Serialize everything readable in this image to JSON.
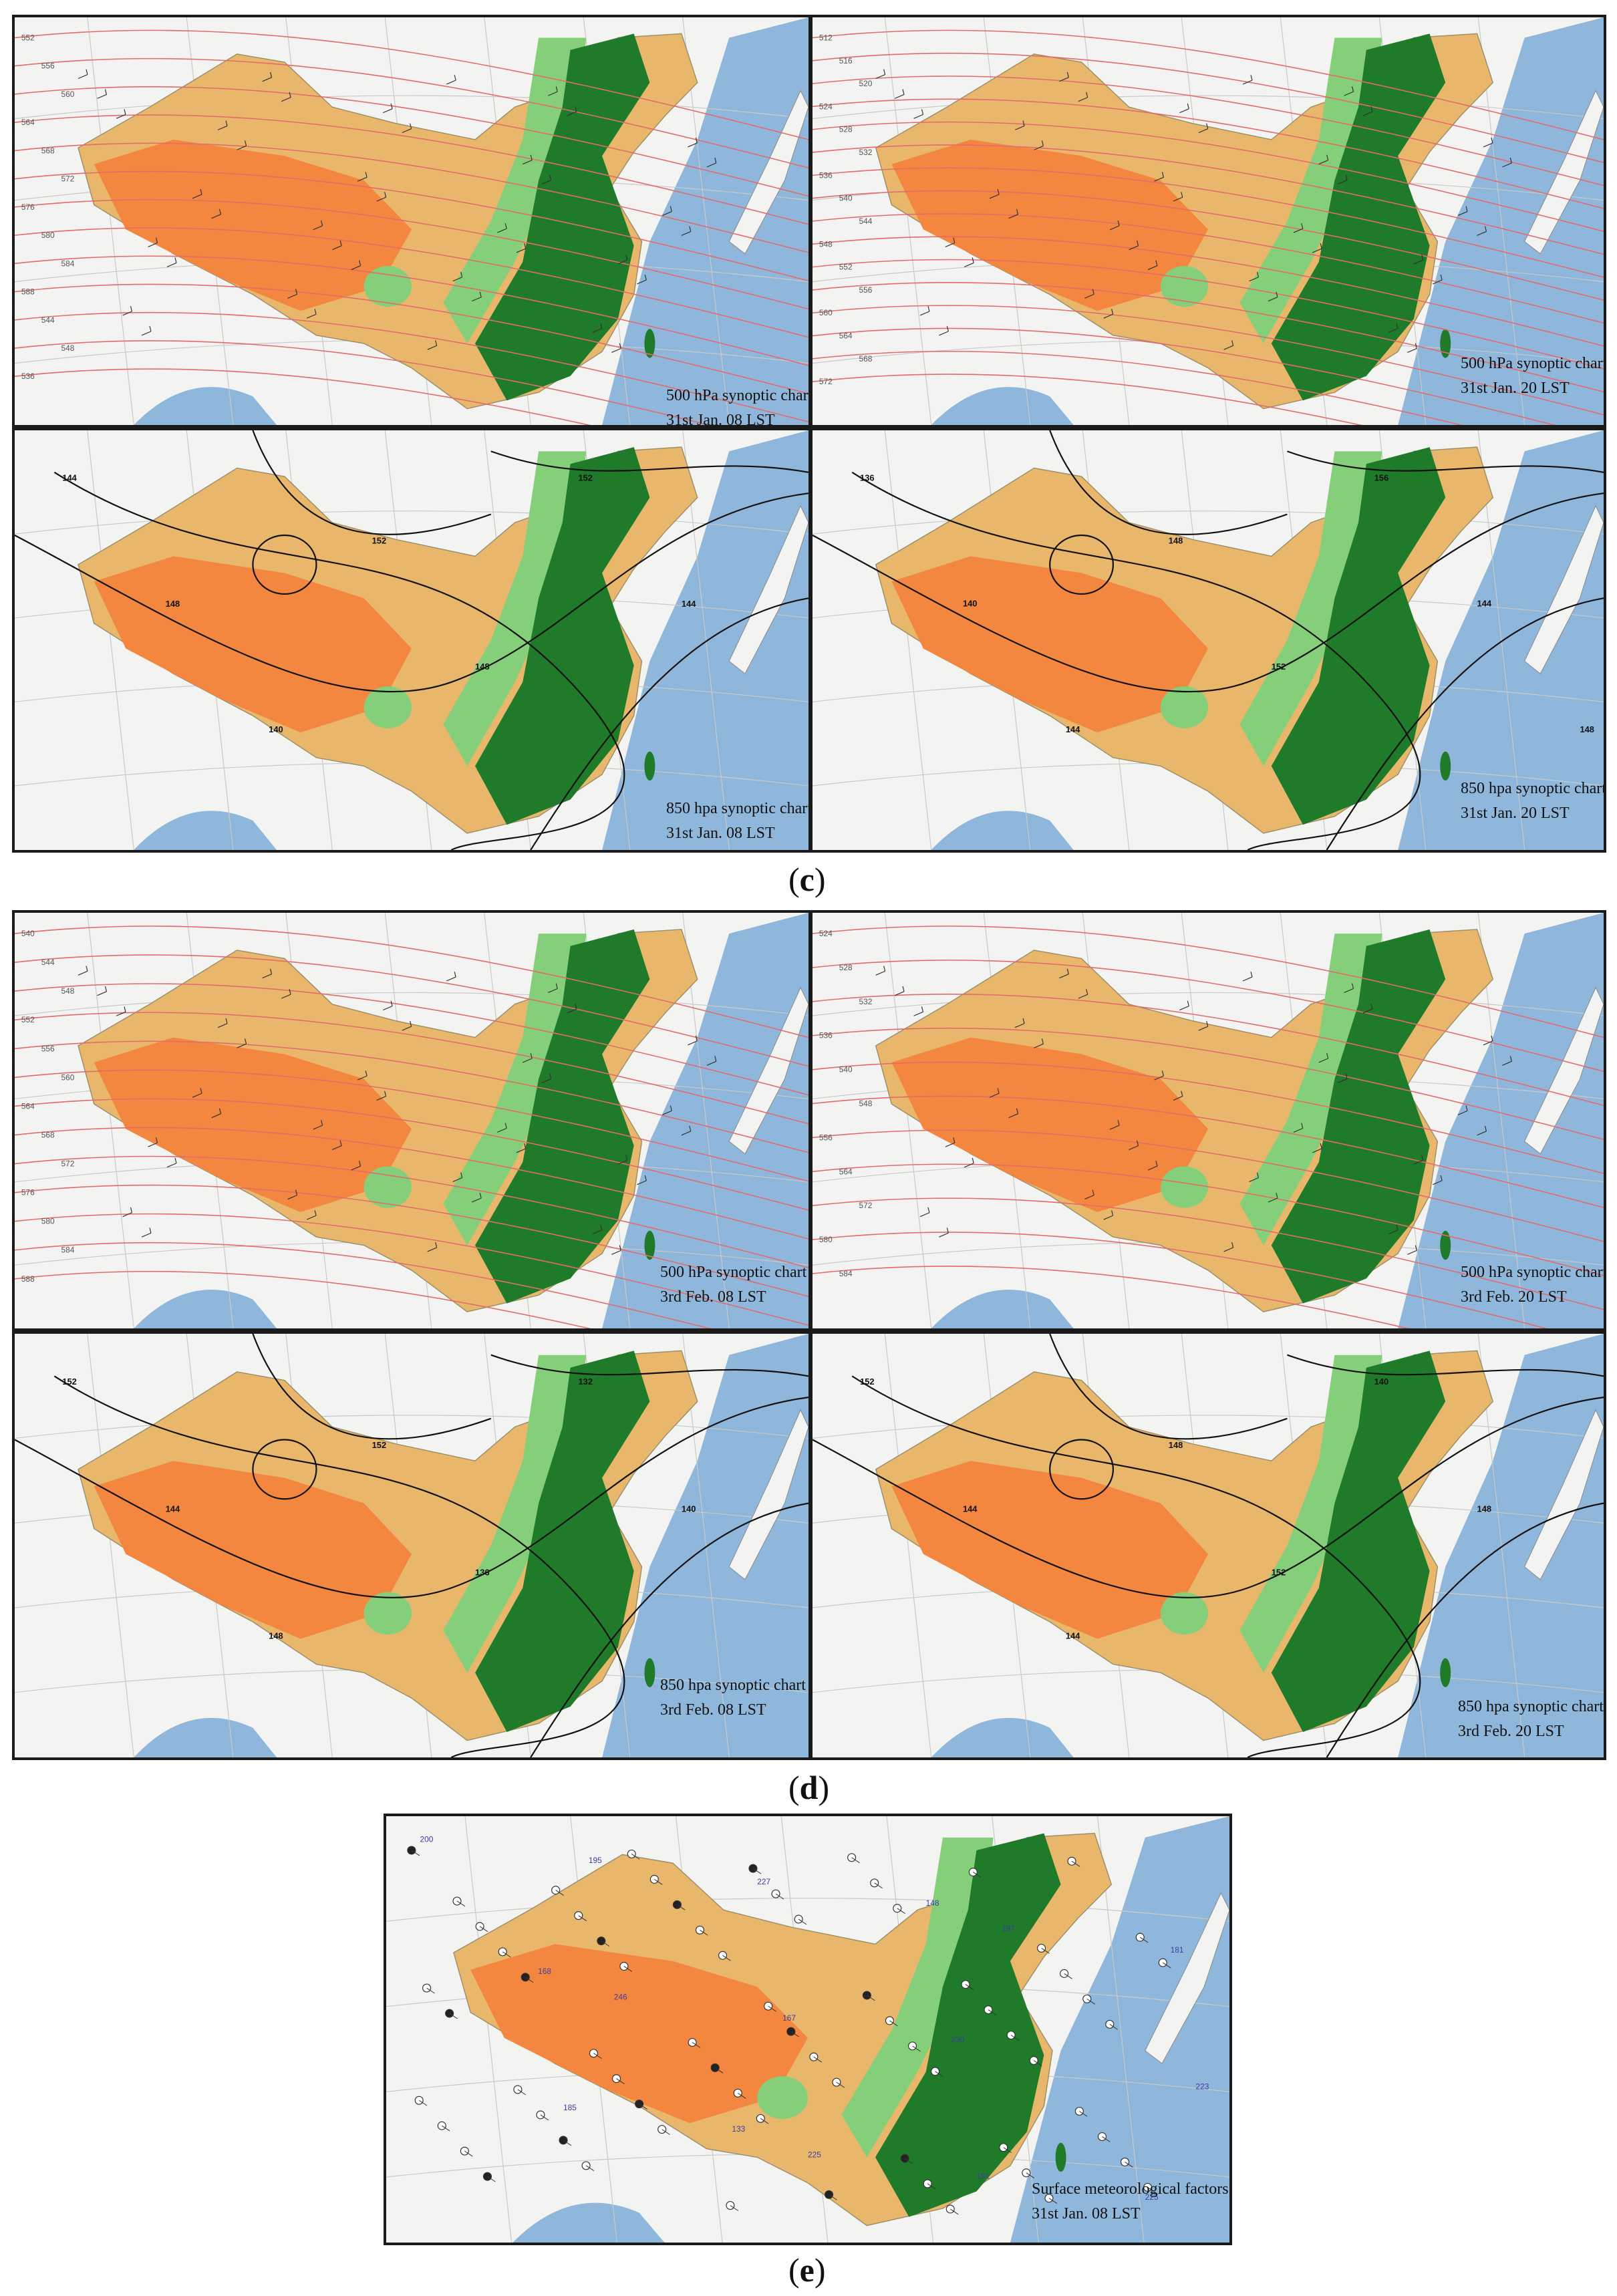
{
  "figure_labels": {
    "c": "c",
    "d": "d",
    "e": "e"
  },
  "panels": [
    {
      "id": "c1",
      "chart_title": "500 hPa synoptic chart",
      "time": "31st Jan. 08 LST",
      "level": "500",
      "contour_labels": [
        "552",
        "556",
        "560",
        "564",
        "568",
        "572",
        "576",
        "580",
        "584",
        "588",
        "544",
        "548",
        "536"
      ]
    },
    {
      "id": "c2",
      "chart_title": "500 hPa synoptic chart",
      "time": "31st Jan. 20 LST",
      "level": "500",
      "contour_labels": [
        "512",
        "516",
        "520",
        "524",
        "528",
        "532",
        "536",
        "540",
        "544",
        "548",
        "552",
        "556",
        "560",
        "564",
        "568",
        "572"
      ]
    },
    {
      "id": "c3",
      "chart_title": "850 hpa synoptic chart",
      "time": "31st Jan. 08 LST",
      "level": "850",
      "contour_labels": [
        "144",
        "148",
        "140",
        "152",
        "148",
        "152",
        "144"
      ]
    },
    {
      "id": "c4",
      "chart_title": "850 hpa synoptic chart",
      "time": "31st Jan. 20 LST",
      "level": "850",
      "contour_labels": [
        "136",
        "140",
        "144",
        "148",
        "152",
        "156",
        "144",
        "148"
      ]
    },
    {
      "id": "d1",
      "chart_title": "500 hPa synoptic chart",
      "time": "3rd Feb. 08 LST",
      "level": "500",
      "contour_labels": [
        "540",
        "544",
        "548",
        "552",
        "556",
        "560",
        "564",
        "568",
        "572",
        "576",
        "580",
        "584",
        "588"
      ]
    },
    {
      "id": "d2",
      "chart_title": "500 hPa synoptic chart",
      "time": "3rd Feb. 20 LST",
      "level": "500",
      "contour_labels": [
        "524",
        "528",
        "532",
        "536",
        "540",
        "548",
        "556",
        "564",
        "572",
        "580",
        "584"
      ]
    },
    {
      "id": "d3",
      "chart_title": "850 hpa synoptic chart",
      "time": "3rd Feb. 08 LST",
      "level": "850",
      "contour_labels": [
        "152",
        "144",
        "148",
        "152",
        "136",
        "132",
        "140"
      ]
    },
    {
      "id": "d4",
      "chart_title": "850 hpa synoptic chart",
      "time": "3rd Feb. 20 LST",
      "level": "850",
      "contour_labels": [
        "152",
        "144",
        "144",
        "148",
        "152",
        "140",
        "148"
      ]
    },
    {
      "id": "e1",
      "chart_title": "Surface meteorological factors",
      "time": "31st Jan. 08 LST",
      "level": "surface",
      "contour_labels": [
        "200",
        "246",
        "225",
        "197",
        "223",
        "195",
        "167",
        "191",
        "181",
        "185",
        "227",
        "230",
        "225",
        "168",
        "133",
        "148"
      ]
    }
  ],
  "colors": {
    "land_dry": "#e9b76c",
    "plateau": "#f3873f",
    "plateau_dark": "#ee6f2b",
    "forest": "#1f7a2a",
    "grass": "#86cf7a",
    "sea": "#8fb7dc",
    "background": "#f3f4f1",
    "contour_500": "#e36b6b",
    "contour_850": "#111111"
  }
}
